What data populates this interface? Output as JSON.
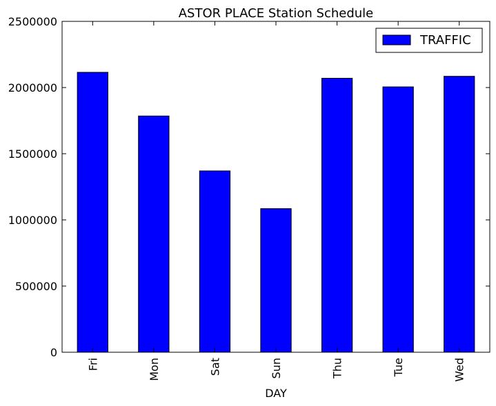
{
  "chart_data": {
    "type": "bar",
    "title": "ASTOR PLACE Station Schedule",
    "xlabel": "DAY",
    "ylabel": "",
    "categories": [
      "Fri",
      "Mon",
      "Sat",
      "Sun",
      "Thu",
      "Tue",
      "Wed"
    ],
    "series": [
      {
        "name": "TRAFFIC",
        "color": "#0000ff",
        "values": [
          2115000,
          1785000,
          1370000,
          1085000,
          2070000,
          2005000,
          2085000
        ]
      }
    ],
    "ylim": [
      0,
      2500000
    ],
    "yticks": [
      0,
      500000,
      1000000,
      1500000,
      2000000,
      2500000
    ],
    "ytick_labels": [
      "0",
      "500000",
      "1000000",
      "1500000",
      "2000000",
      "2500000"
    ],
    "legend_position": "top-right",
    "grid": false
  }
}
